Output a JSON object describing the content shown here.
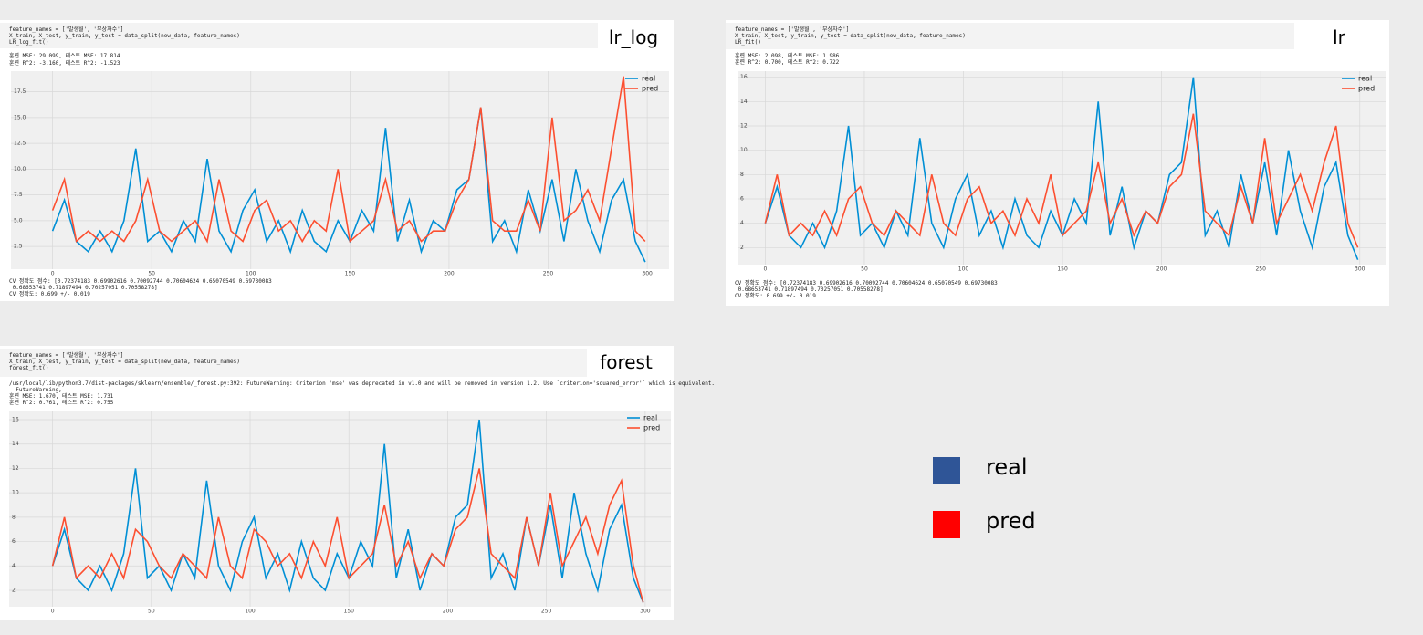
{
  "panels": [
    {
      "label": "lr_log",
      "code": [
        "feature_names = ['발생월', '부상자수']",
        "X_train, X_test, y_train, y_test = data_split(new_data, feature_names)",
        "LR_log_fit()"
      ],
      "output": [
        "훈련 MSE: 29.099, 테스트 MSE: 17.814",
        "훈련 R^2: -3.160, 테스트 R^2: -1.523"
      ],
      "footer": [
        "CV 정확도 점수: [0.72374183 0.69902616 0.70092744 0.70604624 0.65070549 0.69730083",
        " 0.68653741 0.71897494 0.70257051 0.70558278]",
        "CV 정확도: 0.699 +/- 0.019"
      ]
    },
    {
      "label": "lr",
      "code": [
        "feature_names = ['발생월', '부상자수']",
        "X_train, X_test, y_train, y_test = data_split(new_data, feature_names)",
        "LR_fit()"
      ],
      "output": [
        "훈련 MSE: 2.098, 테스트 MSE: 1.986",
        "훈련 R^2: 0.700, 테스트 R^2: 0.722"
      ],
      "footer": [
        "CV 정확도 점수: [0.72374183 0.69902616 0.70092744 0.70604624 0.65070549 0.69730083",
        " 0.68653741 0.71897494 0.70257051 0.70558278]",
        "CV 정확도: 0.699 +/- 0.019"
      ]
    },
    {
      "label": "forest",
      "code": [
        "feature_names = ['발생월', '부상자수']",
        "X_train, X_test, y_train, y_test = data_split(new_data, feature_names)",
        "forest_fit()"
      ],
      "output": [
        "/usr/local/lib/python3.7/dist-packages/sklearn/ensemble/_forest.py:392: FutureWarning: Criterion 'mse' was deprecated in v1.0 and will be removed in version 1.2. Use `criterion='squared_error'` which is equivalent.",
        "  FutureWarning,",
        "훈련 MSE: 1.670, 테스트 MSE: 1.731",
        "훈련 R^2: 0.761, 테스트 R^2: 0.755"
      ],
      "footer": []
    }
  ],
  "chart_data": [
    {
      "type": "line",
      "x": [
        0,
        6,
        12,
        18,
        24,
        30,
        36,
        42,
        48,
        54,
        60,
        66,
        72,
        78,
        84,
        90,
        96,
        102,
        108,
        114,
        120,
        126,
        132,
        138,
        144,
        150,
        156,
        162,
        168,
        174,
        180,
        186,
        192,
        198,
        204,
        210,
        216,
        222,
        228,
        234,
        240,
        246,
        252,
        258,
        264,
        270,
        276,
        282,
        288,
        294,
        299
      ],
      "series": [
        {
          "name": "real",
          "color": "#008fd5",
          "values": [
            4,
            7,
            3,
            2,
            4,
            2,
            5,
            12,
            3,
            4,
            2,
            5,
            3,
            11,
            4,
            2,
            6,
            8,
            3,
            5,
            2,
            6,
            3,
            2,
            5,
            3,
            6,
            4,
            14,
            3,
            7,
            2,
            5,
            4,
            8,
            9,
            16,
            3,
            5,
            2,
            8,
            4,
            9,
            3,
            10,
            5,
            2,
            7,
            9,
            3,
            1
          ]
        },
        {
          "name": "pred",
          "color": "#fc4f30",
          "values": [
            6,
            9,
            3,
            4,
            3,
            4,
            3,
            5,
            9,
            4,
            3,
            4,
            5,
            3,
            9,
            4,
            3,
            6,
            7,
            4,
            5,
            3,
            5,
            4,
            10,
            3,
            4,
            5,
            9,
            4,
            5,
            3,
            4,
            4,
            7,
            9,
            16,
            5,
            4,
            4,
            7,
            4,
            15,
            5,
            6,
            8,
            5,
            12,
            19,
            4,
            3
          ]
        }
      ],
      "xlim": [
        -21,
        311
      ],
      "ylim": [
        0.3,
        19.5
      ],
      "xticks": [
        0,
        50,
        100,
        150,
        200,
        250,
        300
      ],
      "yticks": [
        2.5,
        {
          "value": 5,
          "label": "5.0"
        },
        7.5,
        {
          "value": 10,
          "label": "10.0"
        },
        12.5,
        {
          "value": 15,
          "label": "15.0"
        },
        17.5
      ],
      "grid": true,
      "legend": "upper right"
    },
    {
      "type": "line",
      "x": [
        0,
        6,
        12,
        18,
        24,
        30,
        36,
        42,
        48,
        54,
        60,
        66,
        72,
        78,
        84,
        90,
        96,
        102,
        108,
        114,
        120,
        126,
        132,
        138,
        144,
        150,
        156,
        162,
        168,
        174,
        180,
        186,
        192,
        198,
        204,
        210,
        216,
        222,
        228,
        234,
        240,
        246,
        252,
        258,
        264,
        270,
        276,
        282,
        288,
        294,
        299
      ],
      "series": [
        {
          "name": "real",
          "color": "#008fd5",
          "values": [
            4,
            7,
            3,
            2,
            4,
            2,
            5,
            12,
            3,
            4,
            2,
            5,
            3,
            11,
            4,
            2,
            6,
            8,
            3,
            5,
            2,
            6,
            3,
            2,
            5,
            3,
            6,
            4,
            14,
            3,
            7,
            2,
            5,
            4,
            8,
            9,
            16,
            3,
            5,
            2,
            8,
            4,
            9,
            3,
            10,
            5,
            2,
            7,
            9,
            3,
            1
          ]
        },
        {
          "name": "pred",
          "color": "#fc4f30",
          "values": [
            4,
            8,
            3,
            4,
            3,
            5,
            3,
            6,
            7,
            4,
            3,
            5,
            4,
            3,
            8,
            4,
            3,
            6,
            7,
            4,
            5,
            3,
            6,
            4,
            8,
            3,
            4,
            5,
            9,
            4,
            6,
            3,
            5,
            4,
            7,
            8,
            13,
            5,
            4,
            3,
            7,
            4,
            11,
            4,
            6,
            8,
            5,
            9,
            12,
            4,
            2
          ]
        }
      ],
      "xlim": [
        -14,
        313
      ],
      "ylim": [
        0.6,
        16.5
      ],
      "xticks": [
        0,
        50,
        100,
        150,
        200,
        250,
        300
      ],
      "yticks": [
        2,
        4,
        6,
        8,
        10,
        12,
        14,
        16
      ],
      "grid": true,
      "legend": "upper right"
    },
    {
      "type": "line",
      "x": [
        0,
        6,
        12,
        18,
        24,
        30,
        36,
        42,
        48,
        54,
        60,
        66,
        72,
        78,
        84,
        90,
        96,
        102,
        108,
        114,
        120,
        126,
        132,
        138,
        144,
        150,
        156,
        162,
        168,
        174,
        180,
        186,
        192,
        198,
        204,
        210,
        216,
        222,
        228,
        234,
        240,
        246,
        252,
        258,
        264,
        270,
        276,
        282,
        288,
        294,
        299
      ],
      "series": [
        {
          "name": "real",
          "color": "#008fd5",
          "values": [
            4,
            7,
            3,
            2,
            4,
            2,
            5,
            12,
            3,
            4,
            2,
            5,
            3,
            11,
            4,
            2,
            6,
            8,
            3,
            5,
            2,
            6,
            3,
            2,
            5,
            3,
            6,
            4,
            14,
            3,
            7,
            2,
            5,
            4,
            8,
            9,
            16,
            3,
            5,
            2,
            8,
            4,
            9,
            3,
            10,
            5,
            2,
            7,
            9,
            3,
            1
          ]
        },
        {
          "name": "pred",
          "color": "#fc4f30",
          "values": [
            4,
            8,
            3,
            4,
            3,
            5,
            3,
            7,
            6,
            4,
            3,
            5,
            4,
            3,
            8,
            4,
            3,
            7,
            6,
            4,
            5,
            3,
            6,
            4,
            8,
            3,
            4,
            5,
            9,
            4,
            6,
            3,
            5,
            4,
            7,
            8,
            12,
            5,
            4,
            3,
            8,
            4,
            10,
            4,
            6,
            8,
            5,
            9,
            11,
            4,
            1
          ]
        }
      ],
      "xlim": [
        -22,
        313
      ],
      "ylim": [
        0.65,
        16.75
      ],
      "xticks": [
        0,
        50,
        100,
        150,
        200,
        250,
        300
      ],
      "yticks": [
        2,
        4,
        6,
        8,
        10,
        12,
        14,
        16
      ],
      "grid": true,
      "legend": "upper right"
    }
  ],
  "legend": {
    "items": [
      {
        "name": "real",
        "color": "#2f5597"
      },
      {
        "name": "pred",
        "color": "#ff0000"
      }
    ]
  }
}
